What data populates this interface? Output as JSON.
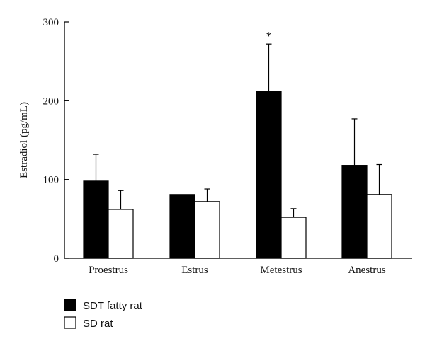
{
  "chart_data": {
    "type": "bar",
    "categories": [
      "Proestrus",
      "Estrus",
      "Metestrus",
      "Anestrus"
    ],
    "series": [
      {
        "name": "SDT fatty rat",
        "values": [
          98,
          81,
          212,
          118
        ],
        "errors": [
          34,
          0,
          60,
          59
        ],
        "color": "#000000"
      },
      {
        "name": "SD rat",
        "values": [
          62,
          72,
          52,
          81
        ],
        "errors": [
          24,
          16,
          11,
          38
        ],
        "color": "#ffffff"
      }
    ],
    "ylabel": "Estradiol (pg/mL)",
    "ylim": [
      0,
      300
    ],
    "yticks": [
      "0",
      "100",
      "200",
      "300"
    ],
    "annotations": [
      {
        "category": "Metestrus",
        "series": 0,
        "text": "*"
      }
    ],
    "legend_position": "bottom-left",
    "grid": false
  }
}
